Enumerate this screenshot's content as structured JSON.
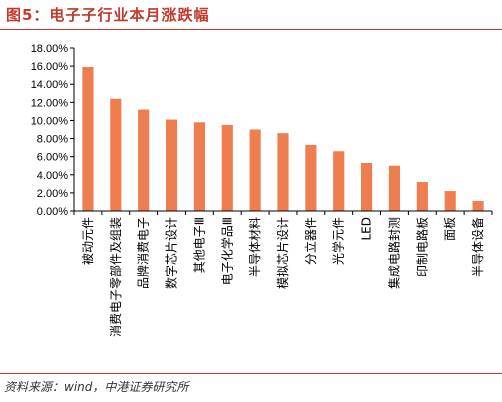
{
  "header": {
    "title": "图5：电子子行业本月涨跌幅"
  },
  "footer": {
    "source": "资料来源：wind，中港证券研究所"
  },
  "colors": {
    "bar": "#ee7e4f",
    "title": "#c0392b",
    "axis": "#000000"
  },
  "chart_data": {
    "type": "bar",
    "title": "",
    "xlabel": "",
    "ylabel": "",
    "ylim": [
      0,
      18
    ],
    "yticks": [
      "0.00%",
      "2.00%",
      "4.00%",
      "6.00%",
      "8.00%",
      "10.00%",
      "12.00%",
      "14.00%",
      "16.00%",
      "18.00%"
    ],
    "grid": false,
    "legend": "none",
    "categories": [
      "被动元件",
      "消费电子零部件及组装",
      "品牌消费电子",
      "数字芯片设计",
      "其他电子Ⅲ",
      "电子化学品Ⅲ",
      "半导体材料",
      "模拟芯片设计",
      "分立器件",
      "光学元件",
      "LED",
      "集成电路封测",
      "印制电路板",
      "面板",
      "半导体设备"
    ],
    "values": [
      15.9,
      12.4,
      11.2,
      10.1,
      9.8,
      9.5,
      9.0,
      8.6,
      7.3,
      6.6,
      5.3,
      5.0,
      3.2,
      2.2,
      1.1
    ]
  }
}
